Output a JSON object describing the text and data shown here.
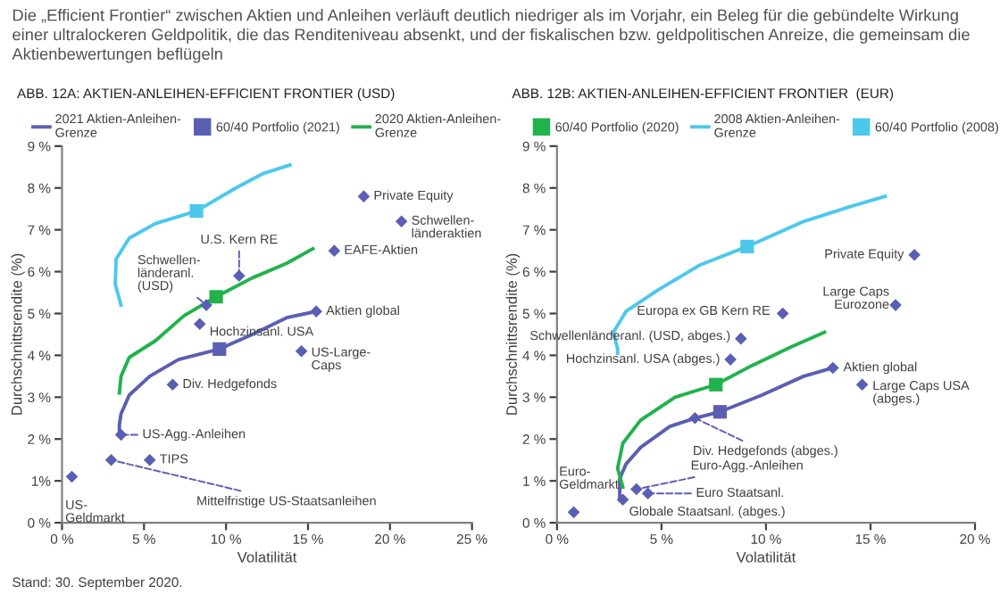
{
  "chart_data": [
    {
      "type": "scatter",
      "title": "Die „Efficient Frontier“ zwischen Aktien und Anleihen verläuft deutlich niedriger als im Vorjahr, ein Beleg für die gebündelte Wirkung einer ultralockeren Geldpolitik, die das Renditeniveau absenkt, und der fiskalischen bzw. geldpolitischen Anreize, die gemeinsam die Aktienbewertungen beflügeln",
      "subtitle": "ABB. 12A: AKTIEN-ANLEIHEN-EFFICIENT FRONTIER (USD)",
      "xlabel": "Volatilität",
      "ylabel": "Durchschnittsrendite (%)",
      "xlim": [
        0,
        25
      ],
      "ylim": [
        0,
        9
      ],
      "xticks": [
        {
          "value": 0,
          "label": "0 %"
        },
        {
          "value": 5,
          "label": "5 %"
        },
        {
          "value": 10,
          "label": "10 %"
        },
        {
          "value": 15,
          "label": "15 %"
        },
        {
          "value": 20,
          "label": "20 %"
        },
        {
          "value": 25,
          "label": "25 %"
        }
      ],
      "yticks": [
        {
          "value": 0,
          "label": "0 %"
        },
        {
          "value": 1,
          "label": "1%"
        },
        {
          "value": 2,
          "label": "2 %"
        },
        {
          "value": 3,
          "label": "3 %"
        },
        {
          "value": 4,
          "label": "4 %"
        },
        {
          "value": 5,
          "label": "5 %"
        },
        {
          "value": 6,
          "label": "6 %"
        },
        {
          "value": 7,
          "label": "7 %"
        },
        {
          "value": 8,
          "label": "8 %"
        },
        {
          "value": 9,
          "label": "9 %"
        }
      ],
      "grid": false,
      "legend": "top",
      "series": [
        {
          "name": "2021 Aktien-Anleihen-\nGrenze",
          "type": "line",
          "color": "#5a5fb3",
          "marker": "none",
          "x": [
            3.5,
            3.5,
            3.6,
            4.1,
            5.35,
            7.1,
            9.6,
            11.6,
            13.7,
            15.5
          ],
          "values": [
            2.1,
            2.35,
            2.6,
            3.05,
            3.5,
            3.9,
            4.15,
            4.5,
            4.9,
            5.05
          ]
        },
        {
          "name": "60/40 Portfolio (2021)",
          "type": "scatter",
          "color": "#5a5fb3",
          "marker": "square",
          "x": [
            9.6
          ],
          "values": [
            4.15
          ]
        },
        {
          "name": "2020 Aktien-Anleihen-\nGrenze",
          "type": "line",
          "color": "#22b24c",
          "marker": "none",
          "x": [
            3.5,
            3.6,
            4.1,
            5.7,
            7.45,
            9.4,
            11.6,
            13.7,
            15.3
          ],
          "values": [
            3.1,
            3.5,
            3.95,
            4.35,
            4.95,
            5.4,
            5.85,
            6.2,
            6.55
          ]
        },
        {
          "type": "scatter",
          "color": "#22b24c",
          "marker": "square",
          "x": [
            9.4
          ],
          "values": [
            5.4
          ]
        },
        {
          "type": "line",
          "color": "#4cc8ec",
          "marker": "none",
          "x": [
            3.6,
            3.25,
            3.3,
            4.1,
            5.7,
            8.2,
            10.6,
            12.3,
            13.9
          ],
          "values": [
            5.2,
            5.7,
            6.3,
            6.8,
            7.15,
            7.45,
            8.0,
            8.35,
            8.55
          ]
        },
        {
          "type": "scatter",
          "color": "#4cc8ec",
          "marker": "square",
          "x": [
            8.2
          ],
          "values": [
            7.45
          ]
        },
        {
          "type": "scatter",
          "color": "#5a5fb3",
          "marker": "diamond",
          "x": [
            18.4,
            20.7,
            16.6,
            10.8,
            8.8,
            8.4,
            15.5,
            14.6,
            6.75,
            3.6,
            5.35,
            3.0,
            0.6
          ],
          "values": [
            7.8,
            7.2,
            6.5,
            5.9,
            5.2,
            4.75,
            5.05,
            4.1,
            3.3,
            2.1,
            1.5,
            1.5,
            1.1
          ]
        }
      ],
      "annotations": [
        {
          "text": "Private Equity",
          "x": 18.4,
          "y": 7.8
        },
        {
          "text": "Schwellen-\nländeraktien",
          "x": 20.7,
          "y": 7.2
        },
        {
          "text": "EAFE-Aktien",
          "x": 16.6,
          "y": 6.5
        },
        {
          "text": "U.S. Kern RE",
          "x": 10.8,
          "y": 5.9
        },
        {
          "text": "Schwellen-\nländeranl.\n(USD)",
          "x": 8.8,
          "y": 5.2
        },
        {
          "text": "Hochzinsanl. USA",
          "x": 8.4,
          "y": 4.75
        },
        {
          "text": "Aktien global",
          "x": 15.5,
          "y": 5.05
        },
        {
          "text": "US-Large-\nCaps",
          "x": 14.6,
          "y": 4.1
        },
        {
          "text": "Div. Hedgefonds",
          "x": 6.75,
          "y": 3.3
        },
        {
          "text": "US-Agg.-Anleihen",
          "x": 3.6,
          "y": 2.1
        },
        {
          "text": "TIPS",
          "x": 5.35,
          "y": 1.5
        },
        {
          "text": "Mittelfristige US-Staatsanleihen",
          "x": 3.0,
          "y": 1.5
        },
        {
          "text": "US-\nGeldmarkt",
          "x": 0.6,
          "y": 1.1
        },
        "Stand: 30. September 2020."
      ]
    },
    {
      "type": "scatter",
      "subtitle": "ABB. 12B: AKTIEN-ANLEIHEN-EFFICIENT FRONTIER  (EUR)",
      "xlabel": "Volatilität",
      "ylabel": "Durchschnittsrendite (%)",
      "xlim": [
        0,
        20
      ],
      "ylim": [
        0,
        9
      ],
      "xticks": [
        {
          "value": 0,
          "label": "0 %"
        },
        {
          "value": 5,
          "label": "5 %"
        },
        {
          "value": 10,
          "label": "10 %"
        },
        {
          "value": 15,
          "label": "15 %"
        },
        {
          "value": 20,
          "label": "20 %"
        }
      ],
      "yticks": [
        {
          "value": 0,
          "label": "0 %"
        },
        {
          "value": 1,
          "label": "1 %"
        },
        {
          "value": 2,
          "label": "2 %"
        },
        {
          "value": 3,
          "label": "3 %"
        },
        {
          "value": 4,
          "label": "4 %"
        },
        {
          "value": 5,
          "label": "5 %"
        },
        {
          "value": 6,
          "label": "6 %"
        },
        {
          "value": 7,
          "label": "7 %"
        },
        {
          "value": 8,
          "label": "8 %"
        },
        {
          "value": 9,
          "label": "9 %"
        }
      ],
      "grid": false,
      "legend": "top",
      "series": [
        {
          "type": "line",
          "color": "#5a5fb3",
          "marker": "none",
          "x": [
            3.0,
            3.0,
            3.3,
            4.0,
            5.4,
            6.6,
            7.8,
            9.8,
            11.8,
            13.2
          ],
          "values": [
            0.55,
            1.05,
            1.4,
            1.8,
            2.3,
            2.5,
            2.65,
            3.05,
            3.5,
            3.7
          ]
        },
        {
          "type": "scatter",
          "color": "#5a5fb3",
          "marker": "square",
          "x": [
            7.8
          ],
          "values": [
            2.65
          ]
        },
        {
          "type": "line",
          "color": "#22b24c",
          "marker": "none",
          "x": [
            3.15,
            2.9,
            3.15,
            4.0,
            5.65,
            7.6,
            9.3,
            11.2,
            12.8
          ],
          "values": [
            0.85,
            1.3,
            1.9,
            2.45,
            3.0,
            3.3,
            3.75,
            4.2,
            4.55
          ]
        },
        {
          "name": "60/40 Portfolio (2020)",
          "type": "scatter",
          "color": "#22b24c",
          "marker": "square",
          "x": [
            7.6
          ],
          "values": [
            3.3
          ]
        },
        {
          "name": "2008 Aktien-Anleihen-\nGrenze",
          "type": "line",
          "color": "#4cc8ec",
          "marker": "none",
          "x": [
            2.9,
            2.9,
            2.7,
            3.3,
            4.8,
            6.8,
            9.1,
            11.8,
            14.0,
            15.7
          ],
          "values": [
            4.05,
            4.15,
            4.55,
            5.05,
            5.55,
            6.15,
            6.6,
            7.2,
            7.55,
            7.8
          ]
        },
        {
          "name": "60/40 Portfolio (2008)",
          "type": "scatter",
          "color": "#4cc8ec",
          "marker": "square",
          "x": [
            9.1
          ],
          "values": [
            6.6
          ]
        },
        {
          "type": "scatter",
          "color": "#5a5fb3",
          "marker": "diamond",
          "x": [
            17.1,
            16.2,
            10.8,
            8.8,
            8.3,
            13.2,
            14.6,
            6.6,
            3.8,
            4.35,
            3.15,
            0.8
          ],
          "values": [
            6.4,
            5.2,
            5.0,
            4.4,
            3.9,
            3.7,
            3.3,
            2.5,
            0.8,
            0.7,
            0.55,
            0.25
          ]
        }
      ],
      "annotations": [
        {
          "text": "Private Equity",
          "x": 17.1,
          "y": 6.4
        },
        {
          "text": "Large Caps\nEurozone",
          "x": 16.2,
          "y": 5.2
        },
        {
          "text": "Europa ex GB Kern RE",
          "x": 10.8,
          "y": 5.0
        },
        {
          "text": "Schwellenländeranl. (USD, abges.)",
          "x": 8.8,
          "y": 4.4
        },
        {
          "text": "Hochzinsanl. USA (abges.)",
          "x": 8.3,
          "y": 3.9
        },
        {
          "text": "Aktien global",
          "x": 13.2,
          "y": 3.7
        },
        {
          "text": "Large Caps USA\n(abges.)",
          "x": 14.6,
          "y": 3.3
        },
        {
          "text": "Div. Hedgefonds (abges.)",
          "x": 6.6,
          "y": 2.5
        },
        {
          "text": "Euro-Agg.-Anleihen",
          "x": 3.8,
          "y": 0.8
        },
        {
          "text": "Euro Staatsanl.",
          "x": 4.35,
          "y": 0.7
        },
        {
          "text": "Globale Staatsanl. (abges.)",
          "x": 3.15,
          "y": 0.55
        },
        {
          "text": "Euro-\nGeldmarkt",
          "x": 0.8,
          "y": 0.25
        }
      ]
    }
  ]
}
